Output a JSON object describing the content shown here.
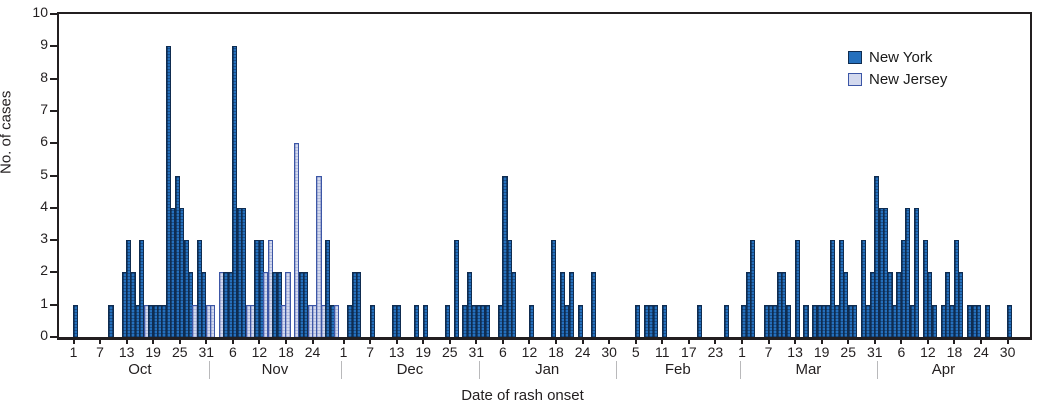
{
  "chart_data": {
    "type": "bar",
    "title": "",
    "xlabel": "Date of rash onset",
    "ylabel": "No. of cases",
    "ylim": [
      0,
      10
    ],
    "y_ticks": [
      0,
      1,
      2,
      3,
      4,
      5,
      6,
      7,
      8,
      9,
      10
    ],
    "grid": false,
    "legend_position": "top-right",
    "legend": [
      {
        "label": "New York",
        "key": "NY",
        "fill": "#2570bd",
        "border": "#0f2c50"
      },
      {
        "label": "New Jersey",
        "key": "NJ",
        "fill": "#d3d9ee",
        "border": "#3c56a6"
      }
    ],
    "months": [
      {
        "name": "Oct",
        "days": 31,
        "tick_days": [
          1,
          7,
          13,
          19,
          25,
          31
        ]
      },
      {
        "name": "Nov",
        "days": 30,
        "tick_days": [
          6,
          12,
          18,
          24
        ]
      },
      {
        "name": "Dec",
        "days": 31,
        "tick_days": [
          1,
          7,
          13,
          19,
          25,
          31
        ]
      },
      {
        "name": "Jan",
        "days": 31,
        "tick_days": [
          6,
          12,
          18,
          24,
          30
        ]
      },
      {
        "name": "Feb",
        "days": 28,
        "tick_days": [
          5,
          11,
          17,
          23
        ]
      },
      {
        "name": "Mar",
        "days": 31,
        "tick_days": [
          1,
          7,
          13,
          19,
          25,
          31
        ]
      },
      {
        "name": "Apr",
        "days": 30,
        "tick_days": [
          6,
          12,
          18,
          24,
          30
        ]
      }
    ],
    "bars": [
      {
        "month": "Oct",
        "day": 1,
        "cases": 1,
        "state": "NY"
      },
      {
        "month": "Oct",
        "day": 9,
        "cases": 1,
        "state": "NY"
      },
      {
        "month": "Oct",
        "day": 12,
        "cases": 2,
        "state": "NY"
      },
      {
        "month": "Oct",
        "day": 13,
        "cases": 3,
        "state": "NY"
      },
      {
        "month": "Oct",
        "day": 14,
        "cases": 2,
        "state": "NY"
      },
      {
        "month": "Oct",
        "day": 15,
        "cases": 1,
        "state": "NY"
      },
      {
        "month": "Oct",
        "day": 16,
        "cases": 3,
        "state": "NY"
      },
      {
        "month": "Oct",
        "day": 17,
        "cases": 1,
        "state": "NJ"
      },
      {
        "month": "Oct",
        "day": 18,
        "cases": 1,
        "state": "NY"
      },
      {
        "month": "Oct",
        "day": 19,
        "cases": 1,
        "state": "NY"
      },
      {
        "month": "Oct",
        "day": 20,
        "cases": 1,
        "state": "NY"
      },
      {
        "month": "Oct",
        "day": 21,
        "cases": 1,
        "state": "NY"
      },
      {
        "month": "Oct",
        "day": 22,
        "cases": 9,
        "state": "NY"
      },
      {
        "month": "Oct",
        "day": 23,
        "cases": 4,
        "state": "NY"
      },
      {
        "month": "Oct",
        "day": 24,
        "cases": 5,
        "state": "NY"
      },
      {
        "month": "Oct",
        "day": 25,
        "cases": 4,
        "state": "NY"
      },
      {
        "month": "Oct",
        "day": 26,
        "cases": 3,
        "state": "NY"
      },
      {
        "month": "Oct",
        "day": 27,
        "cases": 2,
        "state": "NY"
      },
      {
        "month": "Oct",
        "day": 28,
        "cases": 1,
        "state": "NJ"
      },
      {
        "month": "Oct",
        "day": 29,
        "cases": 3,
        "state": "NY"
      },
      {
        "month": "Oct",
        "day": 30,
        "cases": 2,
        "state": "NY"
      },
      {
        "month": "Oct",
        "day": 31,
        "cases": 1,
        "state": "NJ"
      },
      {
        "month": "Nov",
        "day": 1,
        "cases": 1,
        "state": "NJ"
      },
      {
        "month": "Nov",
        "day": 3,
        "cases": 2,
        "state": "NJ"
      },
      {
        "month": "Nov",
        "day": 4,
        "cases": 2,
        "state": "NY"
      },
      {
        "month": "Nov",
        "day": 5,
        "cases": 2,
        "state": "NY"
      },
      {
        "month": "Nov",
        "day": 6,
        "cases": 9,
        "state": "NY"
      },
      {
        "month": "Nov",
        "day": 7,
        "cases": 4,
        "state": "NY"
      },
      {
        "month": "Nov",
        "day": 8,
        "cases": 4,
        "state": "NY"
      },
      {
        "month": "Nov",
        "day": 9,
        "cases": 1,
        "state": "NJ"
      },
      {
        "month": "Nov",
        "day": 10,
        "cases": 1,
        "state": "NJ"
      },
      {
        "month": "Nov",
        "day": 11,
        "cases": 3,
        "state": "NY"
      },
      {
        "month": "Nov",
        "day": 12,
        "cases": 3,
        "state": "NY"
      },
      {
        "month": "Nov",
        "day": 13,
        "cases": 2,
        "state": "NJ"
      },
      {
        "month": "Nov",
        "day": 14,
        "cases": 3,
        "state": "NJ"
      },
      {
        "month": "Nov",
        "day": 15,
        "cases": 2,
        "state": "NY"
      },
      {
        "month": "Nov",
        "day": 16,
        "cases": 2,
        "state": "NY"
      },
      {
        "month": "Nov",
        "day": 17,
        "cases": 1,
        "state": "NJ"
      },
      {
        "month": "Nov",
        "day": 18,
        "cases": 2,
        "state": "NJ"
      },
      {
        "month": "Nov",
        "day": 20,
        "cases": 6,
        "state": "NJ"
      },
      {
        "month": "Nov",
        "day": 21,
        "cases": 2,
        "state": "NY"
      },
      {
        "month": "Nov",
        "day": 22,
        "cases": 2,
        "state": "NY"
      },
      {
        "month": "Nov",
        "day": 23,
        "cases": 1,
        "state": "NJ"
      },
      {
        "month": "Nov",
        "day": 24,
        "cases": 1,
        "state": "NJ"
      },
      {
        "month": "Nov",
        "day": 25,
        "cases": 5,
        "state": "NJ"
      },
      {
        "month": "Nov",
        "day": 26,
        "cases": 1,
        "state": "NJ"
      },
      {
        "month": "Nov",
        "day": 27,
        "cases": 3,
        "state": "NY"
      },
      {
        "month": "Nov",
        "day": 28,
        "cases": 1,
        "state": "NY"
      },
      {
        "month": "Nov",
        "day": 29,
        "cases": 1,
        "state": "NJ"
      },
      {
        "month": "Dec",
        "day": 2,
        "cases": 1,
        "state": "NY"
      },
      {
        "month": "Dec",
        "day": 3,
        "cases": 2,
        "state": "NY"
      },
      {
        "month": "Dec",
        "day": 4,
        "cases": 2,
        "state": "NY"
      },
      {
        "month": "Dec",
        "day": 7,
        "cases": 1,
        "state": "NY"
      },
      {
        "month": "Dec",
        "day": 12,
        "cases": 1,
        "state": "NY"
      },
      {
        "month": "Dec",
        "day": 13,
        "cases": 1,
        "state": "NY"
      },
      {
        "month": "Dec",
        "day": 17,
        "cases": 1,
        "state": "NY"
      },
      {
        "month": "Dec",
        "day": 19,
        "cases": 1,
        "state": "NY"
      },
      {
        "month": "Dec",
        "day": 24,
        "cases": 1,
        "state": "NY"
      },
      {
        "month": "Dec",
        "day": 26,
        "cases": 3,
        "state": "NY"
      },
      {
        "month": "Dec",
        "day": 28,
        "cases": 1,
        "state": "NY"
      },
      {
        "month": "Dec",
        "day": 29,
        "cases": 2,
        "state": "NY"
      },
      {
        "month": "Dec",
        "day": 30,
        "cases": 1,
        "state": "NY"
      },
      {
        "month": "Dec",
        "day": 31,
        "cases": 1,
        "state": "NY"
      },
      {
        "month": "Jan",
        "day": 1,
        "cases": 1,
        "state": "NY"
      },
      {
        "month": "Jan",
        "day": 2,
        "cases": 1,
        "state": "NY"
      },
      {
        "month": "Jan",
        "day": 5,
        "cases": 1,
        "state": "NY"
      },
      {
        "month": "Jan",
        "day": 6,
        "cases": 5,
        "state": "NY"
      },
      {
        "month": "Jan",
        "day": 7,
        "cases": 3,
        "state": "NY"
      },
      {
        "month": "Jan",
        "day": 8,
        "cases": 2,
        "state": "NY"
      },
      {
        "month": "Jan",
        "day": 12,
        "cases": 1,
        "state": "NY"
      },
      {
        "month": "Jan",
        "day": 17,
        "cases": 3,
        "state": "NY"
      },
      {
        "month": "Jan",
        "day": 19,
        "cases": 2,
        "state": "NY"
      },
      {
        "month": "Jan",
        "day": 20,
        "cases": 1,
        "state": "NY"
      },
      {
        "month": "Jan",
        "day": 21,
        "cases": 2,
        "state": "NY"
      },
      {
        "month": "Jan",
        "day": 23,
        "cases": 1,
        "state": "NY"
      },
      {
        "month": "Jan",
        "day": 26,
        "cases": 2,
        "state": "NY"
      },
      {
        "month": "Feb",
        "day": 5,
        "cases": 1,
        "state": "NY"
      },
      {
        "month": "Feb",
        "day": 7,
        "cases": 1,
        "state": "NY"
      },
      {
        "month": "Feb",
        "day": 8,
        "cases": 1,
        "state": "NY"
      },
      {
        "month": "Feb",
        "day": 9,
        "cases": 1,
        "state": "NY"
      },
      {
        "month": "Feb",
        "day": 11,
        "cases": 1,
        "state": "NY"
      },
      {
        "month": "Feb",
        "day": 19,
        "cases": 1,
        "state": "NY"
      },
      {
        "month": "Feb",
        "day": 25,
        "cases": 1,
        "state": "NY"
      },
      {
        "month": "Mar",
        "day": 1,
        "cases": 1,
        "state": "NY"
      },
      {
        "month": "Mar",
        "day": 2,
        "cases": 2,
        "state": "NY"
      },
      {
        "month": "Mar",
        "day": 3,
        "cases": 3,
        "state": "NY"
      },
      {
        "month": "Mar",
        "day": 6,
        "cases": 1,
        "state": "NY"
      },
      {
        "month": "Mar",
        "day": 7,
        "cases": 1,
        "state": "NY"
      },
      {
        "month": "Mar",
        "day": 8,
        "cases": 1,
        "state": "NY"
      },
      {
        "month": "Mar",
        "day": 9,
        "cases": 2,
        "state": "NY"
      },
      {
        "month": "Mar",
        "day": 10,
        "cases": 2,
        "state": "NY"
      },
      {
        "month": "Mar",
        "day": 11,
        "cases": 1,
        "state": "NY"
      },
      {
        "month": "Mar",
        "day": 13,
        "cases": 3,
        "state": "NY"
      },
      {
        "month": "Mar",
        "day": 15,
        "cases": 1,
        "state": "NY"
      },
      {
        "month": "Mar",
        "day": 17,
        "cases": 1,
        "state": "NY"
      },
      {
        "month": "Mar",
        "day": 18,
        "cases": 1,
        "state": "NY"
      },
      {
        "month": "Mar",
        "day": 19,
        "cases": 1,
        "state": "NY"
      },
      {
        "month": "Mar",
        "day": 20,
        "cases": 1,
        "state": "NY"
      },
      {
        "month": "Mar",
        "day": 21,
        "cases": 3,
        "state": "NY"
      },
      {
        "month": "Mar",
        "day": 22,
        "cases": 1,
        "state": "NY"
      },
      {
        "month": "Mar",
        "day": 23,
        "cases": 3,
        "state": "NY"
      },
      {
        "month": "Mar",
        "day": 24,
        "cases": 2,
        "state": "NY"
      },
      {
        "month": "Mar",
        "day": 25,
        "cases": 1,
        "state": "NY"
      },
      {
        "month": "Mar",
        "day": 26,
        "cases": 1,
        "state": "NY"
      },
      {
        "month": "Mar",
        "day": 28,
        "cases": 3,
        "state": "NY"
      },
      {
        "month": "Mar",
        "day": 29,
        "cases": 1,
        "state": "NY"
      },
      {
        "month": "Mar",
        "day": 30,
        "cases": 2,
        "state": "NY"
      },
      {
        "month": "Mar",
        "day": 31,
        "cases": 5,
        "state": "NY"
      },
      {
        "month": "Apr",
        "day": 1,
        "cases": 4,
        "state": "NY"
      },
      {
        "month": "Apr",
        "day": 2,
        "cases": 4,
        "state": "NY"
      },
      {
        "month": "Apr",
        "day": 3,
        "cases": 2,
        "state": "NY"
      },
      {
        "month": "Apr",
        "day": 4,
        "cases": 1,
        "state": "NY"
      },
      {
        "month": "Apr",
        "day": 5,
        "cases": 2,
        "state": "NY"
      },
      {
        "month": "Apr",
        "day": 6,
        "cases": 3,
        "state": "NY"
      },
      {
        "month": "Apr",
        "day": 7,
        "cases": 4,
        "state": "NY"
      },
      {
        "month": "Apr",
        "day": 8,
        "cases": 1,
        "state": "NY"
      },
      {
        "month": "Apr",
        "day": 9,
        "cases": 4,
        "state": "NY"
      },
      {
        "month": "Apr",
        "day": 11,
        "cases": 3,
        "state": "NY"
      },
      {
        "month": "Apr",
        "day": 12,
        "cases": 2,
        "state": "NY"
      },
      {
        "month": "Apr",
        "day": 13,
        "cases": 1,
        "state": "NY"
      },
      {
        "month": "Apr",
        "day": 15,
        "cases": 1,
        "state": "NY"
      },
      {
        "month": "Apr",
        "day": 16,
        "cases": 2,
        "state": "NY"
      },
      {
        "month": "Apr",
        "day": 17,
        "cases": 1,
        "state": "NY"
      },
      {
        "month": "Apr",
        "day": 18,
        "cases": 3,
        "state": "NY"
      },
      {
        "month": "Apr",
        "day": 19,
        "cases": 2,
        "state": "NY"
      },
      {
        "month": "Apr",
        "day": 21,
        "cases": 1,
        "state": "NY"
      },
      {
        "month": "Apr",
        "day": 22,
        "cases": 1,
        "state": "NY"
      },
      {
        "month": "Apr",
        "day": 23,
        "cases": 1,
        "state": "NY"
      },
      {
        "month": "Apr",
        "day": 25,
        "cases": 1,
        "state": "NY"
      },
      {
        "month": "Apr",
        "day": 30,
        "cases": 1,
        "state": "NY"
      }
    ]
  },
  "colors": {
    "axis": "#231f20",
    "month_separator": "#b9b9bb",
    "background": "#ffffff"
  }
}
